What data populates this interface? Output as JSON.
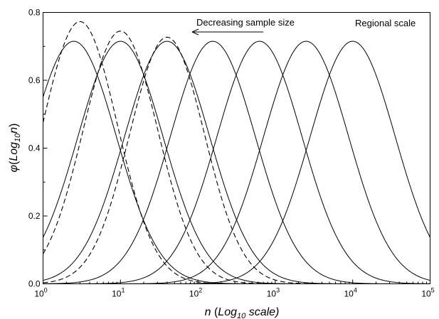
{
  "chart_data": {
    "type": "line",
    "xscale": "log",
    "xlim": [
      1,
      100000
    ],
    "ylim": [
      0,
      0.8
    ],
    "x_ticks": [
      {
        "base": "10",
        "exp": "0"
      },
      {
        "base": "10",
        "exp": "1"
      },
      {
        "base": "10",
        "exp": "2"
      },
      {
        "base": "10",
        "exp": "3"
      },
      {
        "base": "10",
        "exp": "4"
      },
      {
        "base": "10",
        "exp": "5"
      }
    ],
    "y_ticks": [
      "0.0",
      "0.2",
      "0.4",
      "0.6",
      "0.8"
    ],
    "xlabel": {
      "var": "n",
      "open": " (",
      "log": "Log",
      "sub": "10",
      "rest": " scale)"
    },
    "ylabel": {
      "var": "φ",
      "open": "(",
      "log": "Log",
      "sub": "10",
      "var2": "n",
      "close": ")"
    },
    "annotations": {
      "arrow_label": "Decreasing sample size",
      "corner_label": "Regional scale"
    },
    "series": [
      {
        "style": "solid",
        "peak_x": 10000,
        "peak_y": 0.715
      },
      {
        "style": "solid",
        "peak_x": 2500,
        "peak_y": 0.715
      },
      {
        "style": "solid",
        "peak_x": 625,
        "peak_y": 0.715
      },
      {
        "style": "solid",
        "peak_x": 156,
        "peak_y": 0.715
      },
      {
        "style": "solid",
        "peak_x": 40,
        "peak_y": 0.715
      },
      {
        "style": "solid",
        "peak_x": 10,
        "peak_y": 0.715
      },
      {
        "style": "solid",
        "peak_x": 2.5,
        "peak_y": 0.715
      },
      {
        "style": "dashed",
        "peak_x": 40,
        "peak_y": 0.727
      },
      {
        "style": "dashed",
        "peak_x": 10,
        "peak_y": 0.745
      },
      {
        "style": "dashed",
        "peak_x": 3,
        "peak_y": 0.773
      }
    ]
  }
}
